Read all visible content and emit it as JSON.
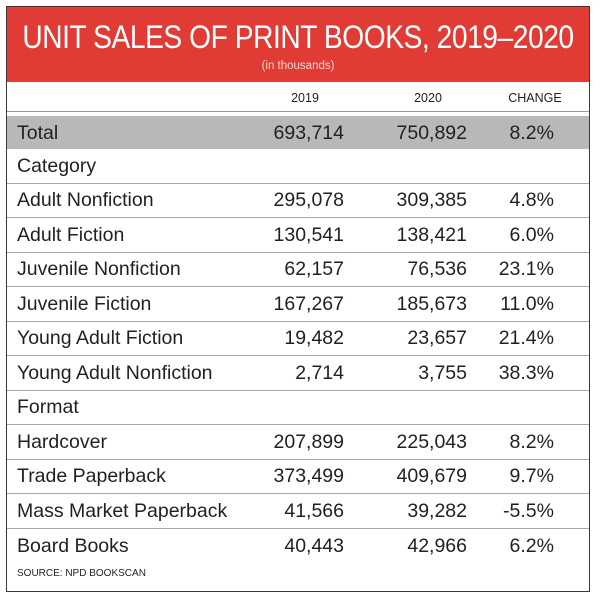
{
  "title": "UNIT SALES OF PRINT BOOKS, 2019–2020",
  "subtitle": "(in thousands)",
  "columns": [
    "2019",
    "2020",
    "CHANGE"
  ],
  "total": {
    "label": "Total",
    "v2019": "693,714",
    "v2020": "750,892",
    "change": "8.2%"
  },
  "sections": [
    {
      "heading": "Category",
      "rows": [
        {
          "label": "Adult Nonfiction",
          "v2019": "295,078",
          "v2020": "309,385",
          "change": "4.8%"
        },
        {
          "label": "Adult Fiction",
          "v2019": "130,541",
          "v2020": "138,421",
          "change": "6.0%"
        },
        {
          "label": "Juvenile Nonfiction",
          "v2019": "62,157",
          "v2020": "76,536",
          "change": "23.1%"
        },
        {
          "label": "Juvenile Fiction",
          "v2019": "167,267",
          "v2020": "185,673",
          "change": "11.0%"
        },
        {
          "label": "Young Adult Fiction",
          "v2019": "19,482",
          "v2020": "23,657",
          "change": "21.4%"
        },
        {
          "label": "Young Adult Nonfiction",
          "v2019": "2,714",
          "v2020": "3,755",
          "change": "38.3%"
        }
      ]
    },
    {
      "heading": "Format",
      "rows": [
        {
          "label": "Hardcover",
          "v2019": "207,899",
          "v2020": "225,043",
          "change": "8.2%"
        },
        {
          "label": "Trade Paperback",
          "v2019": "373,499",
          "v2020": "409,679",
          "change": "9.7%"
        },
        {
          "label": "Mass Market Paperback",
          "v2019": "41,566",
          "v2020": "39,282",
          "change": "-5.5%"
        },
        {
          "label": "Board Books",
          "v2019": "40,443",
          "v2020": "42,966",
          "change": "6.2%"
        }
      ]
    }
  ],
  "source": "SOURCE: NPD BOOKSCAN",
  "colors": {
    "header": "#e03c35",
    "total_row": "#b7b8ba"
  },
  "chart_data": {
    "type": "table",
    "title": "UNIT SALES OF PRINT BOOKS, 2019–2020",
    "subtitle": "(in thousands)",
    "columns": [
      "",
      "2019",
      "2020",
      "CHANGE"
    ],
    "rows": [
      [
        "Total",
        693714,
        750892,
        8.2
      ],
      [
        "Adult Nonfiction",
        295078,
        309385,
        4.8
      ],
      [
        "Adult Fiction",
        130541,
        138421,
        6.0
      ],
      [
        "Juvenile Nonfiction",
        62157,
        76536,
        23.1
      ],
      [
        "Juvenile Fiction",
        167267,
        185673,
        11.0
      ],
      [
        "Young Adult Fiction",
        19482,
        23657,
        21.4
      ],
      [
        "Young Adult Nonfiction",
        2714,
        3755,
        38.3
      ],
      [
        "Hardcover",
        207899,
        225043,
        8.2
      ],
      [
        "Trade Paperback",
        373499,
        409679,
        9.7
      ],
      [
        "Mass Market Paperback",
        41566,
        39282,
        -5.5
      ],
      [
        "Board Books",
        40443,
        42966,
        6.2
      ]
    ]
  }
}
